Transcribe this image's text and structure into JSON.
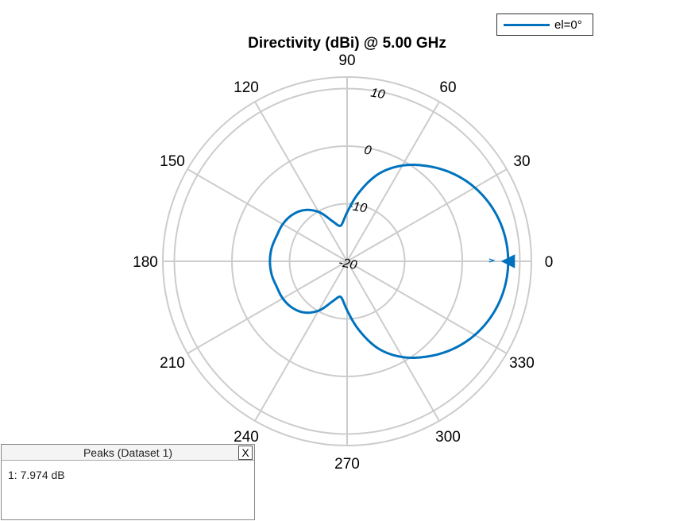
{
  "chart_data": {
    "type": "polar-line",
    "title": "Directivity (dBi) @ 5.00 GHz",
    "angle_labels": [
      "0",
      "30",
      "60",
      "90",
      "120",
      "150",
      "180",
      "210",
      "240",
      "270",
      "300",
      "330"
    ],
    "angle_ticks_deg": [
      0,
      30,
      60,
      90,
      120,
      150,
      180,
      210,
      240,
      270,
      300,
      330
    ],
    "radial_ticks": [
      -20,
      -10,
      0,
      10
    ],
    "radial_tick_labels": [
      "-20",
      "-10",
      "0",
      "10"
    ],
    "rlim": [
      -20,
      12
    ],
    "grid": true,
    "legend_placement": "top-right",
    "series": [
      {
        "name": "el=0°",
        "color": "#0072BD",
        "angles_deg": [
          0,
          10,
          20,
          30,
          40,
          50,
          60,
          70,
          80,
          90,
          100,
          110,
          120,
          130,
          140,
          150,
          160,
          170,
          180,
          190,
          200,
          210,
          220,
          230,
          240,
          250,
          260,
          270,
          280,
          290,
          300,
          310,
          320,
          330,
          340,
          350
        ],
        "values_dB": [
          7.97,
          7.7,
          6.9,
          5.6,
          3.8,
          1.6,
          -0.8,
          -3.8,
          -7.8,
          -11.5,
          -13.7,
          -12.6,
          -10.1,
          -8.4,
          -7.5,
          -7.1,
          -7.0,
          -6.7,
          -6.6,
          -6.7,
          -7.0,
          -7.1,
          -7.5,
          -8.4,
          -10.1,
          -12.6,
          -13.7,
          -11.5,
          -7.8,
          -3.8,
          -0.8,
          1.6,
          3.8,
          5.6,
          6.9,
          7.7
        ]
      }
    ],
    "peak_marker": {
      "angle_deg": 0,
      "value_dB": 7.974
    }
  },
  "legend": {
    "entry": "el=0°"
  },
  "peaks_panel": {
    "title": "Peaks (Dataset 1)",
    "close_label": "X",
    "entry": "1: 7.974 dB"
  }
}
